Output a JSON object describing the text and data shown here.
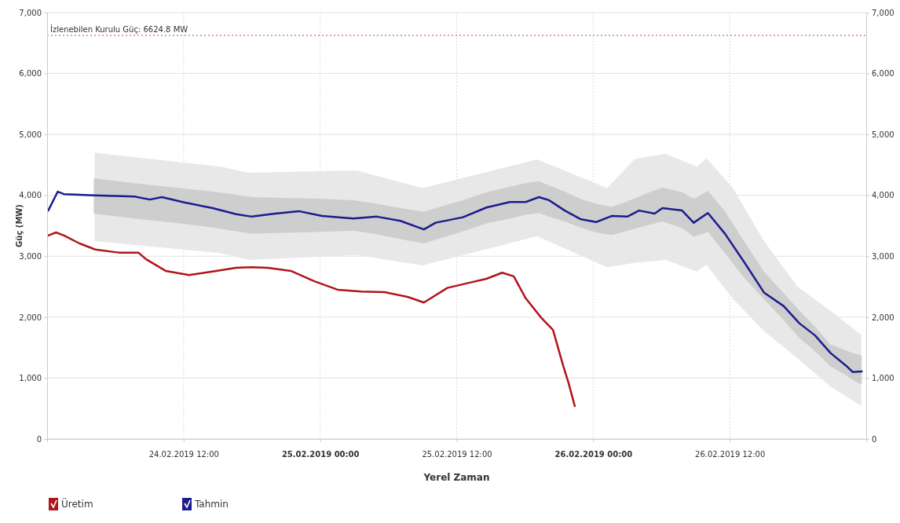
{
  "chart_data": {
    "type": "line",
    "xlabel": "Yerel Zaman",
    "ylabel": "Güç (MW)",
    "xlim": [
      "2019-02-24T00:00",
      "2019-02-27T00:00"
    ],
    "xticks": [
      {
        "value": "2019-02-24T12:00",
        "label": "24.02.2019 12:00"
      },
      {
        "value": "2019-02-25T00:00",
        "label": "25.02.2019 00:00"
      },
      {
        "value": "2019-02-25T12:00",
        "label": "25.02.2019 12:00"
      },
      {
        "value": "2019-02-26T00:00",
        "label": "26.02.2019 00:00"
      },
      {
        "value": "2019-02-26T12:00",
        "label": "26.02.2019 12:00"
      }
    ],
    "ylim": [
      0,
      7000
    ],
    "yticks": [
      0,
      {
        "value": 1000,
        "label": "1,000"
      },
      {
        "value": 2000,
        "label": "2,000"
      },
      {
        "value": 3000,
        "label": "3,000"
      },
      {
        "value": 4000,
        "label": "4,000"
      },
      {
        "value": 5000,
        "label": "5,000"
      },
      {
        "value": 6000,
        "label": "6,000"
      },
      {
        "value": 7000,
        "label": "7,000"
      }
    ],
    "y2lim": [
      0,
      7000
    ],
    "y2ticks": [
      0,
      {
        "value": 1000,
        "label": "1,000"
      },
      {
        "value": 2000,
        "label": "2,000"
      },
      {
        "value": 3000,
        "label": "3,000"
      },
      {
        "value": 4000,
        "label": "4,000"
      },
      {
        "value": 5000,
        "label": "5,000"
      },
      {
        "value": 6000,
        "label": "6,000"
      },
      {
        "value": 7000,
        "label": "7,000"
      }
    ],
    "grid": true,
    "legend": "bottom left",
    "ref_lines": [
      {
        "axis": "y",
        "value": 6624.8,
        "label": "İzlenebilen Kurulu Güç: 6624.8 MW",
        "color": "#d04040",
        "line_style": "dotted"
      }
    ],
    "series": [
      {
        "type": "area",
        "color": "#e8e8e8",
        "x": [
          "2019-02-24T04:10",
          "2019-02-24T15:18",
          "2019-02-24T17:43",
          "2019-02-25T03:12",
          "2019-02-25T08:59",
          "2019-02-25T19:05",
          "2019-02-26T01:13",
          "2019-02-26T03:41",
          "2019-02-26T06:22",
          "2019-02-26T09:07",
          "2019-02-26T09:57",
          "2019-02-26T12:17",
          "2019-02-26T14:58",
          "2019-02-26T17:55",
          "2019-02-26T20:52",
          "2019-02-26T23:33"
        ],
        "values": [
          null,
          null,
          null,
          null,
          null,
          null,
          null,
          null,
          null,
          null,
          null,
          null,
          null,
          null,
          null,
          null
        ],
        "lower": [
          3250,
          3050,
          2940,
          3020,
          2850,
          3330,
          2820,
          2890,
          2940,
          2750,
          2860,
          2300,
          1780,
          1330,
          860,
          540
        ],
        "upper": [
          4700,
          4470,
          4370,
          4410,
          4120,
          4590,
          4120,
          4600,
          4680,
          4470,
          4610,
          4120,
          3260,
          2510,
          2100,
          1710
        ]
      },
      {
        "name": "Üretim",
        "color": "#b0141c",
        "x": [
          "2019-02-24T00:06",
          "2019-02-24T00:47",
          "2019-02-24T01:29",
          "2019-02-24T02:51",
          "2019-02-24T04:14",
          "2019-02-24T06:17",
          "2019-02-24T08:01",
          "2019-02-24T08:42",
          "2019-02-24T10:25",
          "2019-02-24T12:29",
          "2019-02-24T14:33",
          "2019-02-24T16:37",
          "2019-02-24T17:59",
          "2019-02-24T19:22",
          "2019-02-24T21:25",
          "2019-02-24T23:29",
          "2019-02-25T01:32",
          "2019-02-25T03:37",
          "2019-02-25T05:40",
          "2019-02-25T07:44",
          "2019-02-25T09:07",
          "2019-02-25T11:11",
          "2019-02-25T13:14",
          "2019-02-25T14:37",
          "2019-02-25T16:00",
          "2019-02-25T17:01",
          "2019-02-25T18:04",
          "2019-02-25T19:26",
          "2019-02-25T20:28",
          "2019-02-25T21:21",
          "2019-02-25T21:50",
          "2019-02-25T22:23"
        ],
        "values": [
          3340,
          3390,
          3340,
          3210,
          3110,
          3060,
          3060,
          2950,
          2760,
          2690,
          2750,
          2810,
          2820,
          2810,
          2760,
          2590,
          2450,
          2420,
          2410,
          2330,
          2240,
          2480,
          2570,
          2630,
          2730,
          2670,
          2310,
          1990,
          1790,
          1210,
          920,
          540
        ]
      },
      {
        "name": "Tahmin",
        "color": "#1c1c8c",
        "x": [
          "2019-02-24T00:06",
          "2019-02-24T00:56",
          "2019-02-24T01:29",
          "2019-02-24T04:05",
          "2019-02-24T07:40",
          "2019-02-24T09:02",
          "2019-02-24T10:05",
          "2019-02-24T12:08",
          "2019-02-24T14:33",
          "2019-02-24T16:37",
          "2019-02-24T17:59",
          "2019-02-24T20:03",
          "2019-02-24T22:07",
          "2019-02-25T00:10",
          "2019-02-25T02:55",
          "2019-02-25T04:59",
          "2019-02-25T07:03",
          "2019-02-25T09:07",
          "2019-02-25T10:09",
          "2019-02-25T12:33",
          "2019-02-25T14:37",
          "2019-02-25T16:41",
          "2019-02-25T18:04",
          "2019-02-25T19:14",
          "2019-02-25T20:07",
          "2019-02-25T21:30",
          "2019-02-25T22:52",
          "2019-02-26T00:15",
          "2019-02-26T01:37",
          "2019-02-26T03:00",
          "2019-02-26T04:02",
          "2019-02-26T05:24",
          "2019-02-26T06:05",
          "2019-02-26T07:49",
          "2019-02-26T08:50",
          "2019-02-26T10:05",
          "2019-02-26T11:35",
          "2019-02-26T13:19",
          "2019-02-26T15:02",
          "2019-02-26T16:45",
          "2019-02-26T18:07",
          "2019-02-26T19:30",
          "2019-02-26T20:52",
          "2019-02-26T22:15",
          "2019-02-26T22:48",
          "2019-02-26T23:37"
        ],
        "values": [
          3750,
          4060,
          4020,
          4000,
          3980,
          3930,
          3970,
          3880,
          3790,
          3690,
          3650,
          3700,
          3740,
          3660,
          3620,
          3650,
          3580,
          3440,
          3550,
          3640,
          3800,
          3890,
          3890,
          3970,
          3920,
          3750,
          3610,
          3560,
          3660,
          3650,
          3750,
          3700,
          3790,
          3750,
          3550,
          3710,
          3370,
          2890,
          2400,
          2180,
          1900,
          1700,
          1410,
          1200,
          1100,
          1110
        ],
        "lower": [
          null,
          null,
          null,
          3700,
          3620,
          3590,
          3570,
          3530,
          3470,
          3410,
          3370,
          3380,
          3390,
          3400,
          3420,
          3360,
          3280,
          3210,
          3270,
          3410,
          3540,
          3620,
          3680,
          3710,
          3650,
          3570,
          3470,
          3390,
          3350,
          3420,
          3470,
          3540,
          3570,
          3460,
          3320,
          3400,
          3050,
          2640,
          2290,
          1950,
          1660,
          1440,
          1190,
          1040,
          970,
          890
        ],
        "upper": [
          null,
          null,
          null,
          4280,
          4200,
          4170,
          4150,
          4110,
          4060,
          4010,
          3970,
          3960,
          3950,
          3940,
          3920,
          3860,
          3790,
          3730,
          3790,
          3920,
          4050,
          4140,
          4200,
          4230,
          4160,
          4060,
          3940,
          3860,
          3810,
          3900,
          3980,
          4080,
          4130,
          4050,
          3940,
          4070,
          3740,
          3230,
          2740,
          2390,
          2110,
          1840,
          1550,
          1450,
          1410,
          1370
        ]
      }
    ]
  }
}
